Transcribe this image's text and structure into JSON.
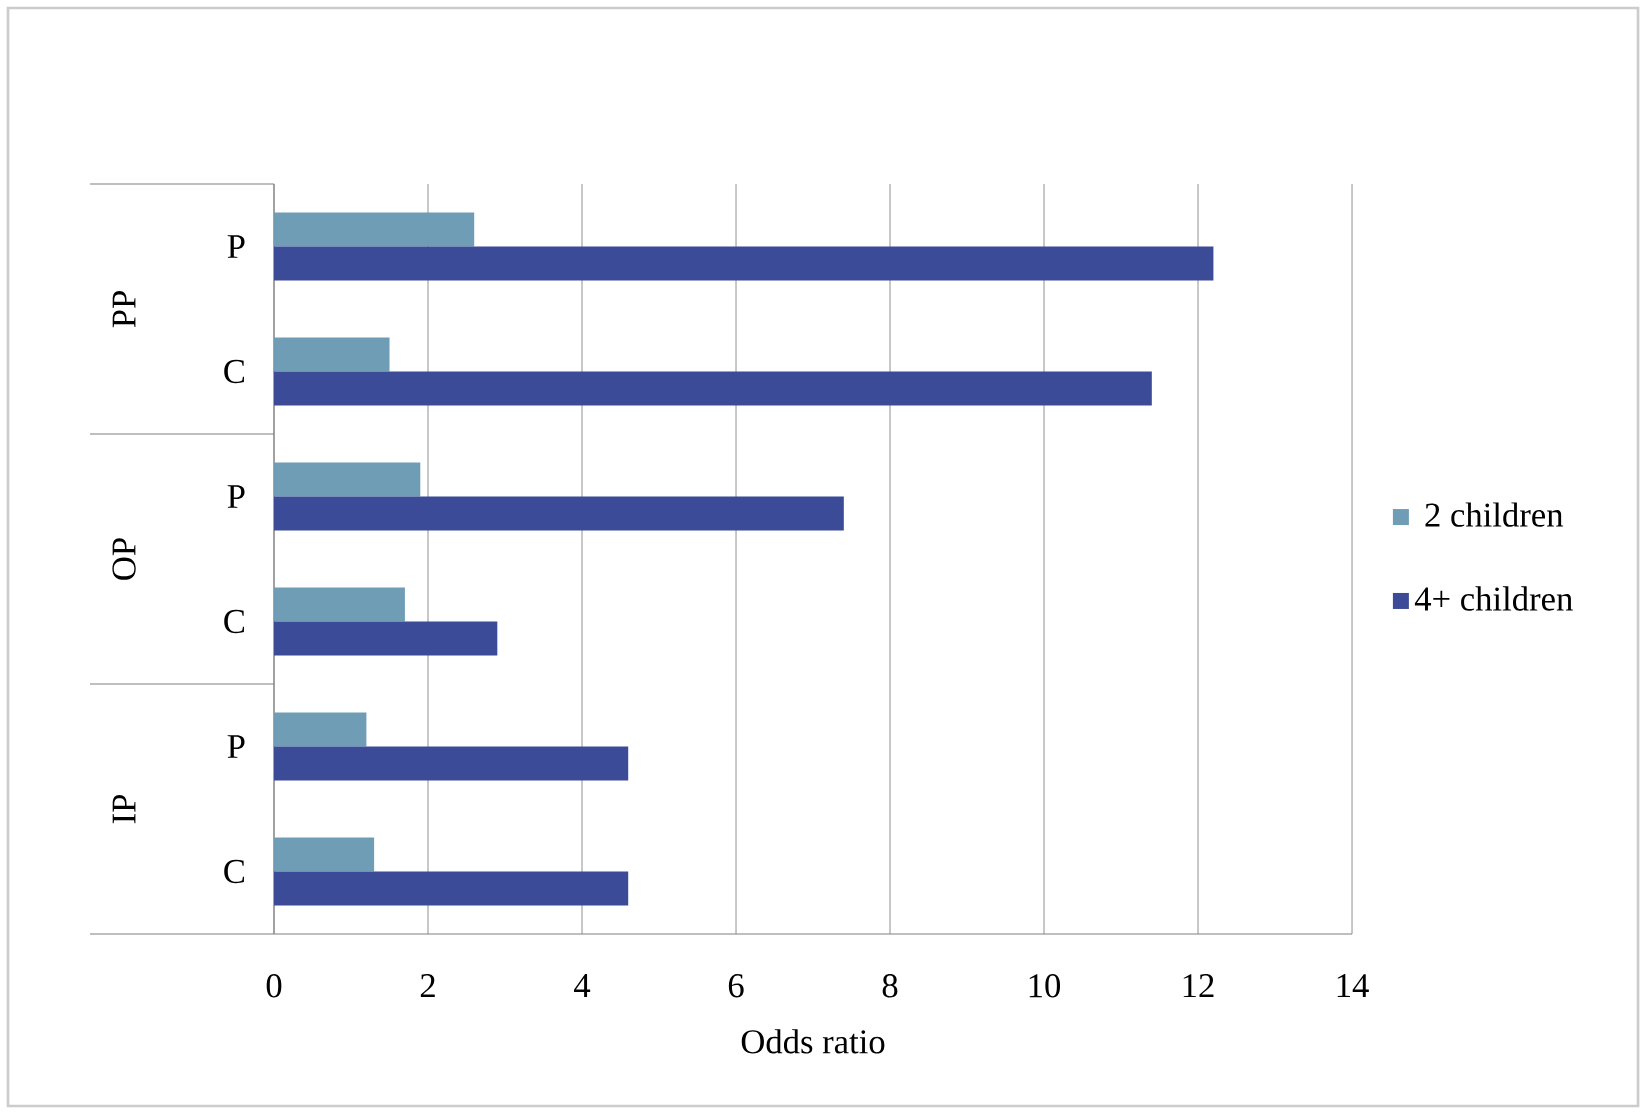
{
  "chart_data": {
    "type": "bar",
    "orientation": "horizontal",
    "xlabel": "Odds ratio",
    "categories": [
      "P",
      "C",
      "P",
      "C",
      "P",
      "C"
    ],
    "annotations": [
      "PP",
      "OP",
      "IP"
    ],
    "series": [
      {
        "name": "2 children",
        "color": "#6f9db5",
        "values": [
          2.6,
          1.5,
          1.9,
          1.7,
          1.2,
          1.3
        ]
      },
      {
        "name": "4+ children",
        "color": "#3b4b97",
        "values": [
          12.2,
          11.4,
          7.4,
          2.9,
          4.6,
          4.6
        ]
      }
    ],
    "xlim": [
      0,
      14
    ],
    "xticks": [
      0,
      2,
      4,
      6,
      8,
      10,
      12,
      14
    ],
    "grid": "x",
    "legend": "right"
  }
}
